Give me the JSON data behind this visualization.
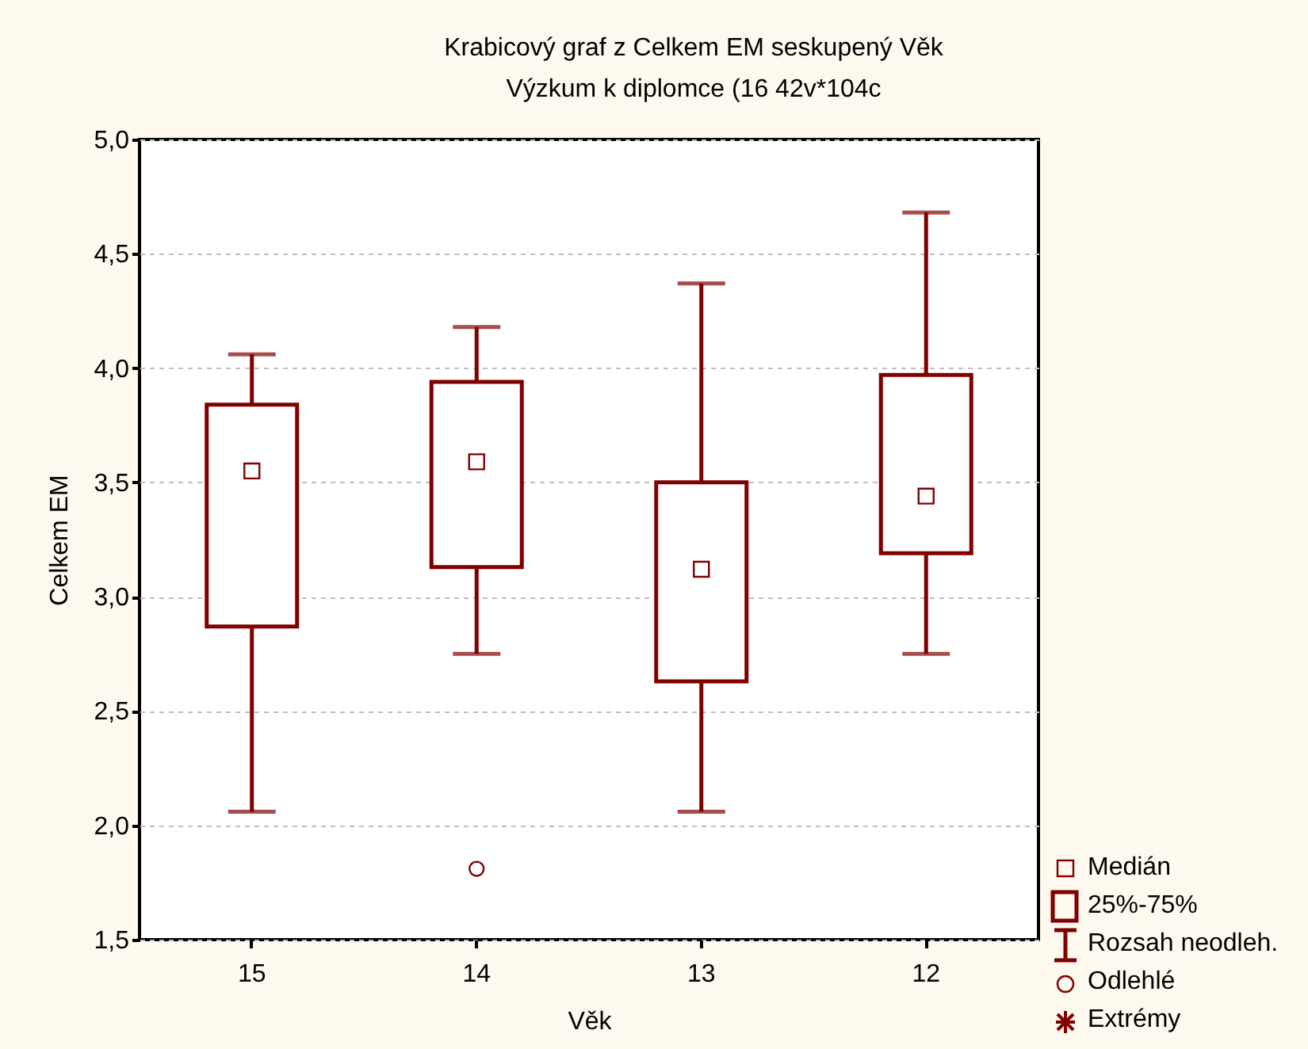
{
  "chart_data": {
    "type": "box",
    "title": "Krabicový graf z Celkem EM seskupený Věk",
    "subtitle": "Výzkum k diplomce (16 42v*104c",
    "xlabel": "Věk",
    "ylabel": "Celkem EM",
    "categories": [
      "15",
      "14",
      "13",
      "12"
    ],
    "series": [
      {
        "color": "#800000",
        "boxes": [
          {
            "low": 2.06,
            "q1": 2.87,
            "median": 3.55,
            "q3": 3.84,
            "high": 4.06
          },
          {
            "low": 2.75,
            "q1": 3.13,
            "median": 3.59,
            "q3": 3.94,
            "high": 4.18,
            "outliers": [
              1.81
            ]
          },
          {
            "low": 2.06,
            "q1": 2.63,
            "median": 3.12,
            "q3": 3.5,
            "high": 4.37
          },
          {
            "low": 2.75,
            "q1": 3.19,
            "median": 3.44,
            "q3": 3.97,
            "high": 4.68
          }
        ]
      }
    ],
    "ylim": [
      1.5,
      5.0
    ],
    "yticks": [
      {
        "value": 1.5,
        "label": "1,5"
      },
      {
        "value": 2.0,
        "label": "2,0"
      },
      {
        "value": 2.5,
        "label": "2,5"
      },
      {
        "value": 3.0,
        "label": "3,0"
      },
      {
        "value": 3.5,
        "label": "3,5"
      },
      {
        "value": 4.0,
        "label": "4,0"
      },
      {
        "value": 4.5,
        "label": "4,5"
      },
      {
        "value": 5.0,
        "label": "5,0"
      }
    ],
    "grid": "y",
    "annotations": [
      "Medián",
      "25%-75%",
      "Rozsah neodleh.",
      "Odlehlé",
      "Extrémy"
    ]
  }
}
